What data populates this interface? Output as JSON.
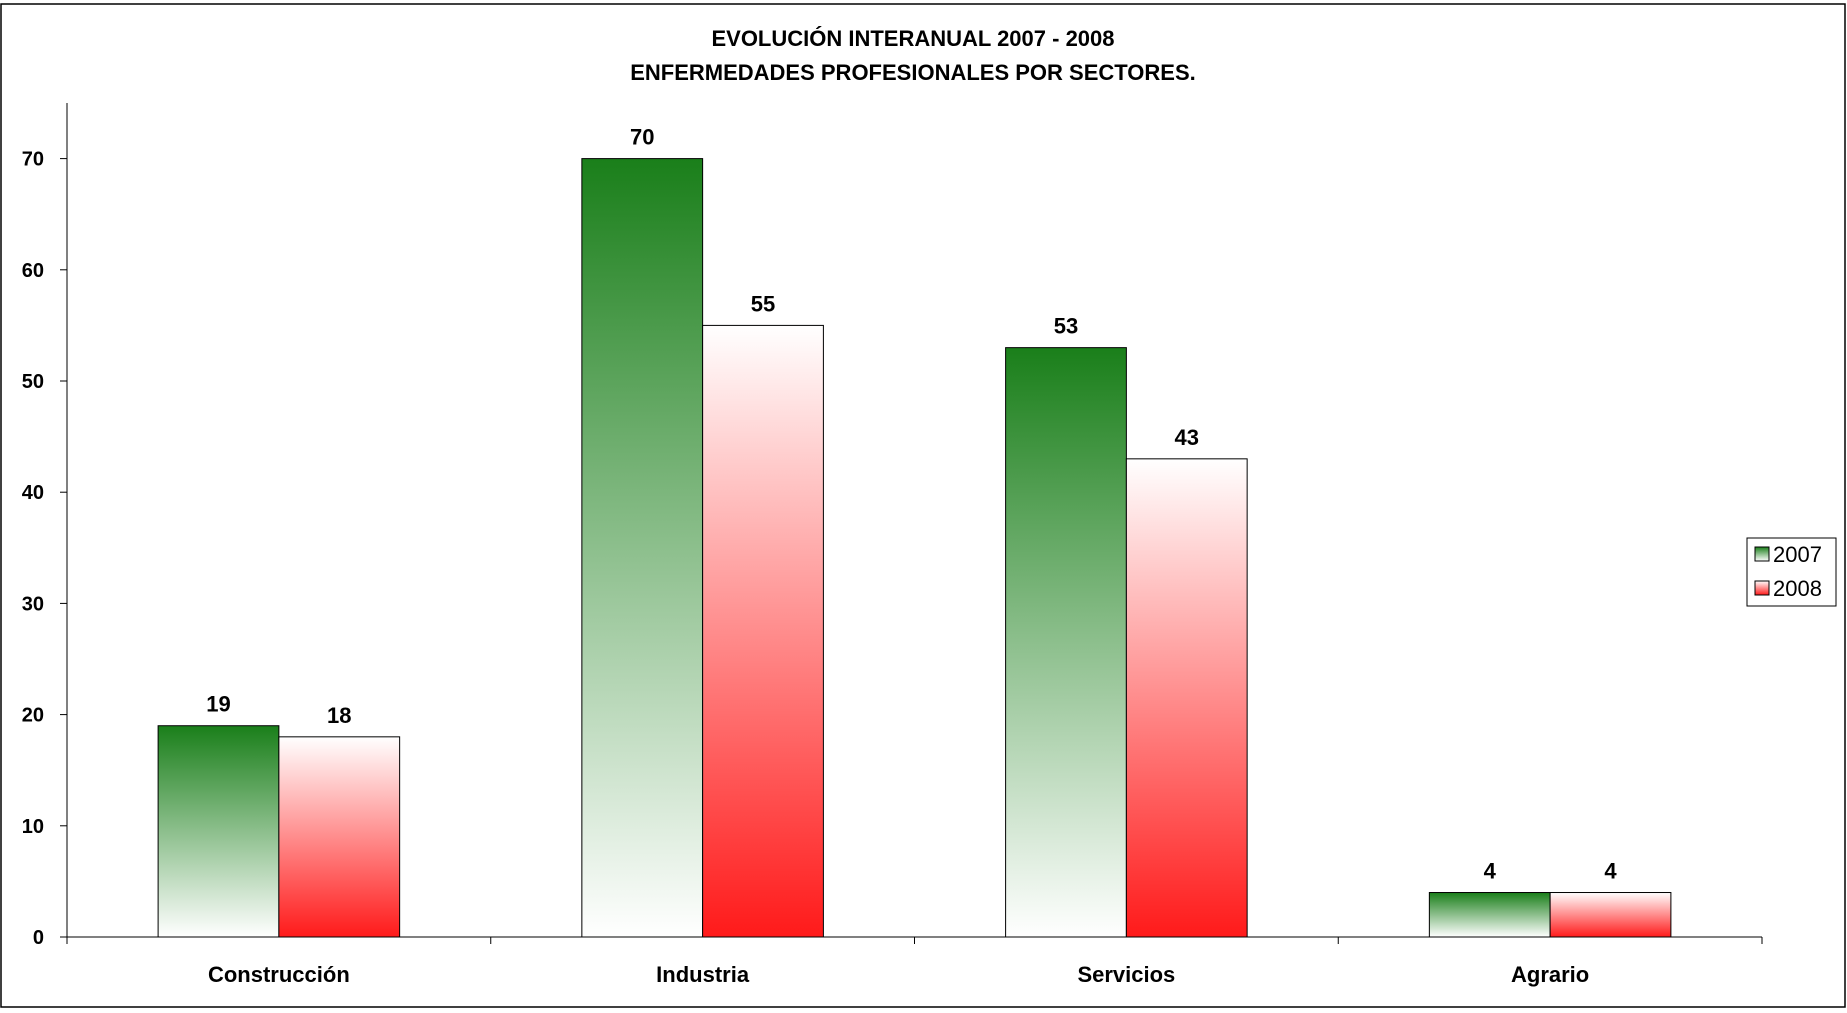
{
  "chart_data": {
    "type": "bar",
    "title_line1": "EVOLUCIÓN INTERANUAL 2007 - 2008",
    "title_line2": "ENFERMEDADES PROFESIONALES POR SECTORES.",
    "xlabel": "",
    "ylabel": "",
    "categories": [
      "Construcción",
      "Industria",
      "Servicios",
      "Agrario"
    ],
    "series": [
      {
        "name": "2007",
        "values": [
          19,
          70,
          53,
          4
        ],
        "color_dark": "#1a7f1a",
        "color_light": "#ffffff"
      },
      {
        "name": "2008",
        "values": [
          18,
          55,
          43,
          4
        ],
        "color_dark": "#ff1a1a",
        "color_light": "#ffffff"
      }
    ],
    "ylim": [
      0,
      75
    ],
    "yticks": [
      0,
      10,
      20,
      30,
      40,
      50,
      60,
      70
    ],
    "grid": false,
    "legend_position": "right",
    "data_labels": true
  }
}
